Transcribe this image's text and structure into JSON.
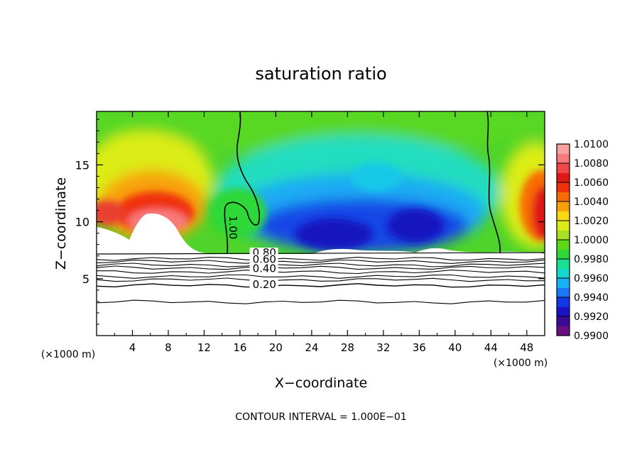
{
  "chart_data": {
    "type": "heatmap",
    "title": "saturation ratio",
    "xlabel": "X−coordinate",
    "ylabel": "Z−coordinate",
    "x_unit_label": "(×1000 m)",
    "y_unit_label": "(×1000 m)",
    "footer": "CONTOUR INTERVAL = 1.000E−01",
    "xlim": [
      0,
      50
    ],
    "ylim": [
      0,
      19.7
    ],
    "x_ticks": [
      4,
      8,
      12,
      16,
      20,
      24,
      28,
      32,
      36,
      40,
      44,
      48
    ],
    "y_ticks": [
      5,
      10,
      15
    ],
    "colorbar": {
      "min": 0.99,
      "max": 1.01,
      "labels": [
        "1.0100",
        "1.0080",
        "1.0060",
        "1.0040",
        "1.0020",
        "1.0000",
        "0.9980",
        "0.9960",
        "0.9940",
        "0.9920",
        "0.9900"
      ],
      "colors": [
        "#6a0d80",
        "#3c0a96",
        "#1a12c4",
        "#1438e8",
        "#1a78f8",
        "#14b4f4",
        "#14d8cc",
        "#18e090",
        "#2ed838",
        "#5cd818",
        "#a8e020",
        "#dcec18",
        "#f8d810",
        "#f8a008",
        "#f86c06",
        "#f03008",
        "#e01818",
        "#f04848",
        "#f87a7a",
        "#f8a2a2"
      ]
    },
    "contour_labels": [
      {
        "text": "1.00",
        "x": 14.8,
        "y": 9.5
      },
      {
        "text": "0.80",
        "x": 17.4,
        "y": 7.1
      },
      {
        "text": "0.60",
        "x": 17.4,
        "y": 6.5
      },
      {
        "text": "0.40",
        "x": 17.4,
        "y": 5.7
      },
      {
        "text": "0.20",
        "x": 17.4,
        "y": 4.3
      }
    ],
    "low_level_contours": [
      {
        "value": 0.9,
        "z": 6.75
      },
      {
        "value": 0.8,
        "z": 6.5
      },
      {
        "value": 0.7,
        "z": 6.2
      },
      {
        "value": 0.6,
        "z": 5.95
      },
      {
        "value": 0.5,
        "z": 5.6
      },
      {
        "value": 0.4,
        "z": 5.2
      },
      {
        "value": 0.3,
        "z": 4.9
      },
      {
        "value": 0.2,
        "z": 4.4
      },
      {
        "value": 0.1,
        "z": 2.95
      }
    ]
  }
}
